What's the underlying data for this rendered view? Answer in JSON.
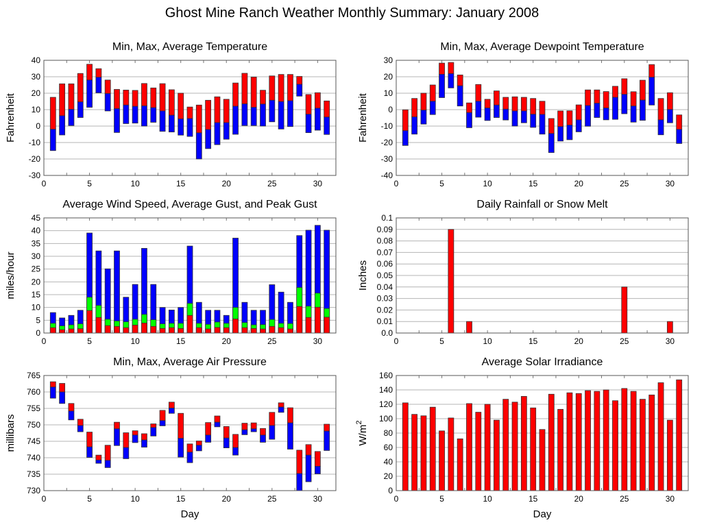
{
  "title": "Ghost Mine Ranch Weather Monthly Summary: January 2008",
  "colors": {
    "red": "#ff0000",
    "blue": "#0000ff",
    "green": "#00ff00",
    "grid": "#b4b4b4"
  },
  "chart_data": [
    {
      "id": "temperature",
      "type": "bar",
      "style": "floating-range",
      "title": "Min, Max, Average Temperature",
      "xlabel": "",
      "ylabel": "Fahrenheit",
      "xlim": [
        0,
        32
      ],
      "ylim": [
        -30,
        40
      ],
      "xticks": [
        0,
        5,
        10,
        15,
        20,
        25,
        30
      ],
      "yticks": [
        -30,
        -20,
        -10,
        0,
        10,
        20,
        30,
        40
      ],
      "grid": true,
      "x": [
        1,
        2,
        3,
        4,
        5,
        6,
        7,
        8,
        9,
        10,
        11,
        12,
        13,
        14,
        15,
        16,
        17,
        18,
        19,
        20,
        21,
        22,
        23,
        24,
        25,
        26,
        27,
        28,
        29,
        30,
        31
      ],
      "series": [
        {
          "name": "Max",
          "values": [
            17.5,
            25.7,
            25.7,
            32,
            37.6,
            34.9,
            28,
            22.3,
            21.9,
            21.7,
            25.9,
            23.2,
            25.8,
            22.1,
            20,
            11.6,
            12.8,
            15.7,
            17.8,
            16.3,
            26.2,
            32.1,
            29.8,
            21.8,
            30.5,
            31.4,
            31.4,
            30.2,
            19.2,
            20.3,
            15.3
          ]
        },
        {
          "name": "Average",
          "values": [
            -1.9,
            6.3,
            10.2,
            14.7,
            28,
            29.7,
            19.8,
            10.6,
            12.8,
            12,
            12.3,
            11.2,
            9.2,
            6.6,
            4.4,
            4.6,
            -4.1,
            -2.1,
            2.1,
            2.1,
            12.1,
            13.5,
            11.4,
            13.4,
            15.7,
            14.9,
            15.4,
            25.4,
            7.2,
            10.9,
            5.5
          ]
        },
        {
          "name": "Min",
          "values": [
            -14.9,
            -5.4,
            0.3,
            5.2,
            11.4,
            20.2,
            9.2,
            -3.9,
            1.5,
            1.8,
            0,
            2.3,
            -3.2,
            -3.6,
            -5.5,
            -6.3,
            -20,
            -13.7,
            -11.3,
            -8,
            -5,
            0.3,
            0.3,
            0,
            2.6,
            -1.8,
            -0.3,
            18.2,
            -4,
            -2.5,
            -5.1
          ]
        }
      ]
    },
    {
      "id": "dewpoint",
      "type": "bar",
      "style": "floating-range",
      "title": "Min, Max, Average Dewpoint Temperature",
      "xlabel": "",
      "ylabel": "Fahrenheit",
      "xlim": [
        0,
        32
      ],
      "ylim": [
        -40,
        30
      ],
      "xticks": [
        0,
        5,
        10,
        15,
        20,
        25,
        30
      ],
      "yticks": [
        -40,
        -30,
        -20,
        -10,
        0,
        10,
        20,
        30
      ],
      "grid": true,
      "x": [
        1,
        2,
        3,
        4,
        5,
        6,
        7,
        8,
        9,
        10,
        11,
        12,
        13,
        14,
        15,
        16,
        17,
        18,
        19,
        20,
        21,
        22,
        23,
        24,
        25,
        26,
        27,
        28,
        29,
        30,
        31
      ],
      "series": [
        {
          "name": "Max",
          "values": [
            -0.1,
            6.8,
            10,
            15,
            28.3,
            28.7,
            21.1,
            4.1,
            15.3,
            6.3,
            11.4,
            7.5,
            7.8,
            7.5,
            6.8,
            5.1,
            -5.4,
            -0.8,
            -0.7,
            2.9,
            12,
            12,
            11,
            14.2,
            18.8,
            10.9,
            17.9,
            27.4,
            6.8,
            10.3,
            -3.2
          ]
        },
        {
          "name": "Average",
          "values": [
            -12.8,
            -4.4,
            -0.3,
            5.1,
            21.5,
            21.9,
            14.5,
            -1.8,
            5.1,
            1,
            2.8,
            0.3,
            -0.8,
            -0.8,
            -2.8,
            -2.9,
            -14.5,
            -10.3,
            -9.4,
            -6.2,
            2.5,
            3.9,
            1,
            7.5,
            9.3,
            2.2,
            5.8,
            19.7,
            -6.2,
            0.1,
            -12
          ]
        },
        {
          "name": "Min",
          "values": [
            -21.8,
            -14.9,
            -8.8,
            -3,
            7.3,
            13.2,
            2.2,
            -11,
            -4.6,
            -6.6,
            -4.8,
            -6.3,
            -10,
            -8,
            -10.8,
            -14.9,
            -26.1,
            -19.1,
            -18.3,
            -13.5,
            -10.1,
            -4.8,
            -6.2,
            -5.9,
            -2.5,
            -7.6,
            -6.5,
            2.8,
            -15.3,
            -8,
            -20.6
          ]
        }
      ]
    },
    {
      "id": "wind",
      "type": "bar",
      "style": "overlaid",
      "title": "Average Wind Speed, Average Gust, and Peak Gust",
      "xlabel": "",
      "ylabel": "miles/hour",
      "xlim": [
        0,
        32
      ],
      "ylim": [
        0,
        45
      ],
      "xticks": [
        0,
        5,
        10,
        15,
        20,
        25,
        30
      ],
      "yticks": [
        0,
        5,
        10,
        15,
        20,
        25,
        30,
        35,
        40,
        45
      ],
      "grid": true,
      "x": [
        1,
        2,
        3,
        4,
        5,
        6,
        7,
        8,
        9,
        10,
        11,
        12,
        13,
        14,
        15,
        16,
        17,
        18,
        19,
        20,
        21,
        22,
        23,
        24,
        25,
        26,
        27,
        28,
        29,
        30,
        31
      ],
      "series": [
        {
          "name": "Peak Gust",
          "values": [
            8,
            5.9,
            6.9,
            8.9,
            39.1,
            32.1,
            25.1,
            32.1,
            14,
            19,
            33.1,
            19,
            10,
            9,
            10,
            34,
            12,
            8.9,
            8.9,
            6.9,
            37.1,
            12,
            8.9,
            8.9,
            18.9,
            16,
            12,
            38.1,
            40.2,
            42.1,
            40.2
          ]
        },
        {
          "name": "Average Gust",
          "values": [
            3.8,
            2.8,
            3.2,
            3.6,
            14,
            10.8,
            5.4,
            4.7,
            4.4,
            5.4,
            7.3,
            5.2,
            3.6,
            3.8,
            3.8,
            11.6,
            3.8,
            3.4,
            4.3,
            3.8,
            10,
            4.1,
            3.2,
            3.3,
            5.3,
            3.8,
            3.7,
            17.8,
            10.5,
            15.6,
            9.6
          ]
        },
        {
          "name": "Average Wind Speed",
          "values": [
            2.1,
            1.3,
            1.6,
            1.7,
            8.8,
            6.1,
            2.9,
            2.6,
            2.1,
            3.1,
            3.9,
            2.6,
            1.8,
            2.1,
            1.8,
            6.9,
            2.1,
            1.6,
            2.2,
            2.1,
            5.5,
            2.1,
            1.8,
            1.6,
            2.6,
            2.1,
            1.6,
            10.4,
            6.1,
            10.1,
            6.2
          ]
        }
      ]
    },
    {
      "id": "rainfall",
      "type": "bar",
      "title": "Daily Rainfall or Snow Melt",
      "xlabel": "",
      "ylabel": "Inches",
      "xlim": [
        0,
        32
      ],
      "ylim": [
        0,
        0.1
      ],
      "xticks": [
        0,
        5,
        10,
        15,
        20,
        25,
        30
      ],
      "yticks": [
        "0.0",
        "0.01",
        "0.02",
        "0.03",
        "0.04",
        "0.05",
        "0.06",
        "0.07",
        "0.08",
        "0.09",
        "0.1"
      ],
      "grid": true,
      "x": [
        1,
        2,
        3,
        4,
        5,
        6,
        7,
        8,
        9,
        10,
        11,
        12,
        13,
        14,
        15,
        16,
        17,
        18,
        19,
        20,
        21,
        22,
        23,
        24,
        25,
        26,
        27,
        28,
        29,
        30,
        31
      ],
      "series": [
        {
          "name": "Rainfall",
          "values": [
            0,
            0,
            0,
            0,
            0,
            0.09,
            0,
            0.01,
            0,
            0,
            0,
            0,
            0,
            0,
            0,
            0,
            0,
            0,
            0,
            0,
            0,
            0,
            0,
            0,
            0.04,
            0,
            0,
            0,
            0,
            0.01,
            0
          ]
        }
      ]
    },
    {
      "id": "pressure",
      "type": "bar",
      "style": "floating-range",
      "title": "Min, Max, Average Air Pressure",
      "xlabel": "Day",
      "ylabel": "millibars",
      "xlim": [
        0,
        32
      ],
      "ylim": [
        730,
        765
      ],
      "xticks": [
        0,
        5,
        10,
        15,
        20,
        25,
        30
      ],
      "yticks": [
        730,
        735,
        740,
        745,
        750,
        755,
        760,
        765
      ],
      "grid": true,
      "x": [
        1,
        2,
        3,
        4,
        5,
        6,
        7,
        8,
        9,
        10,
        11,
        12,
        13,
        14,
        15,
        16,
        17,
        18,
        19,
        20,
        21,
        22,
        23,
        24,
        25,
        26,
        27,
        28,
        29,
        30,
        31
      ],
      "series": [
        {
          "name": "Max",
          "values": [
            763.1,
            762.6,
            756.5,
            751.7,
            747.8,
            740.8,
            743.8,
            750.8,
            747.6,
            748.2,
            747.3,
            750.3,
            754.4,
            756.9,
            753.5,
            744.2,
            745.1,
            750.7,
            752.7,
            749.5,
            747.1,
            750.5,
            750.6,
            748.9,
            753.8,
            756.7,
            755.2,
            742.3,
            744,
            741.9,
            750.2
          ]
        },
        {
          "name": "Average",
          "values": [
            761.5,
            760,
            754.2,
            749.8,
            743.3,
            739.3,
            739.2,
            748.8,
            743.1,
            746.9,
            745.4,
            749.2,
            751.3,
            755.1,
            745.9,
            741.7,
            743.8,
            746.9,
            750.8,
            746,
            743.1,
            748.5,
            748.8,
            746.9,
            749.8,
            755.4,
            750.6,
            735.2,
            740.8,
            737.4,
            748.1
          ]
        },
        {
          "name": "Min",
          "values": [
            758.1,
            756.5,
            751.5,
            747.9,
            740.1,
            738.3,
            737,
            743.7,
            739.7,
            744.6,
            743.2,
            746.6,
            749.7,
            753.5,
            740.2,
            738.5,
            742.1,
            744.7,
            749.4,
            743,
            740.8,
            747,
            747.9,
            744.7,
            745.6,
            753.8,
            742.6,
            730,
            732.7,
            735.1,
            742.2
          ]
        }
      ]
    },
    {
      "id": "solar",
      "type": "bar",
      "title": "Average Solar Irradiance",
      "xlabel": "Day",
      "ylabel": "W/m",
      "ylabel_superscript": "2",
      "xlim": [
        0,
        32
      ],
      "ylim": [
        0,
        160
      ],
      "xticks": [
        0,
        5,
        10,
        15,
        20,
        25,
        30
      ],
      "yticks": [
        0,
        20,
        40,
        60,
        80,
        100,
        120,
        140,
        160
      ],
      "grid": true,
      "x": [
        1,
        2,
        3,
        4,
        5,
        6,
        7,
        8,
        9,
        10,
        11,
        12,
        13,
        14,
        15,
        16,
        17,
        18,
        19,
        20,
        21,
        22,
        23,
        24,
        25,
        26,
        27,
        28,
        29,
        30,
        31
      ],
      "series": [
        {
          "name": "Solar Irradiance",
          "values": [
            122,
            106,
            104,
            116,
            83,
            101,
            72,
            121,
            109,
            120,
            98,
            127,
            123,
            131,
            115,
            85,
            134,
            113,
            136,
            135,
            139,
            138,
            140,
            125,
            142,
            138,
            127,
            133,
            150,
            98,
            154
          ]
        }
      ]
    }
  ]
}
